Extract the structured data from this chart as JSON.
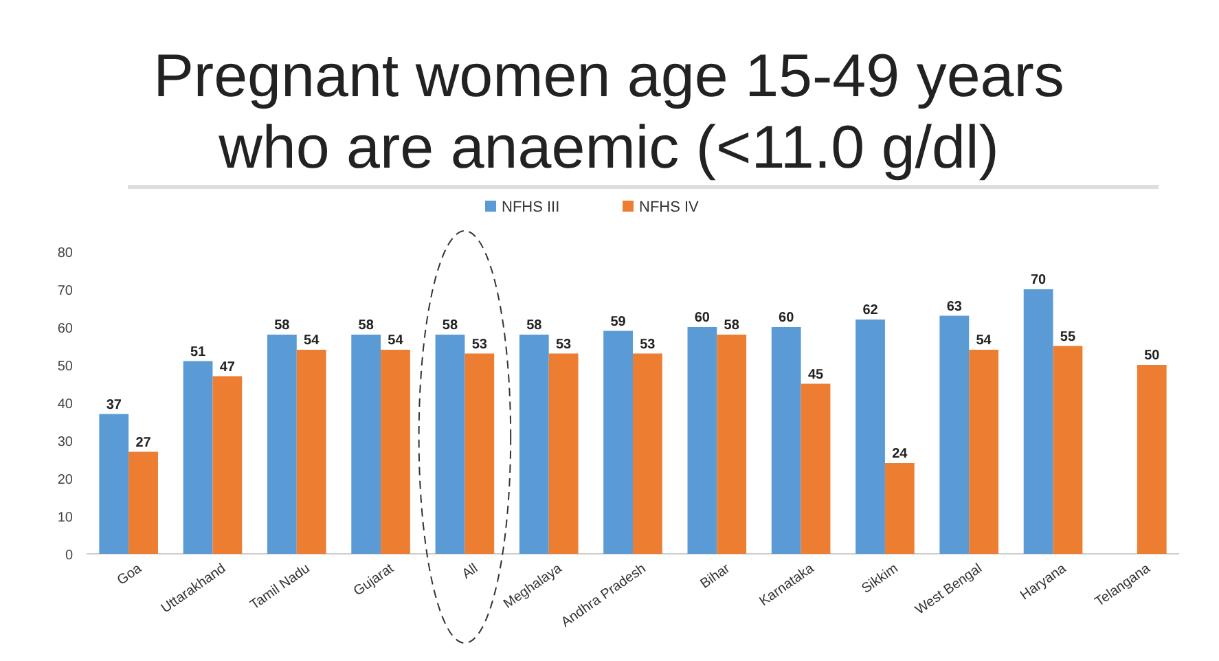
{
  "chart_data": {
    "type": "bar",
    "title": "Pregnant women age 15-49 years who are anaemic (<11.0 g/dl)",
    "categories": [
      "Goa",
      "Uttarakhand",
      "Tamil Nadu",
      "Gujarat",
      "All",
      "Meghalaya",
      "Andhra Pradesh",
      "Bihar",
      "Karnataka",
      "Sikkim",
      "West Bengal",
      "Haryana",
      "Telangana"
    ],
    "series": [
      {
        "name": "NFHS III",
        "color": "#5b9bd5",
        "values": [
          37,
          51,
          58,
          58,
          58,
          58,
          59,
          60,
          60,
          62,
          63,
          70,
          null
        ]
      },
      {
        "name": "NFHS IV",
        "color": "#ed7d31",
        "values": [
          27,
          47,
          54,
          54,
          53,
          53,
          53,
          58,
          45,
          24,
          54,
          55,
          50
        ]
      }
    ],
    "ylim": [
      0,
      80
    ],
    "yticks": [
      0,
      10,
      20,
      30,
      40,
      50,
      60,
      70,
      80
    ],
    "data_labels": true,
    "legend": "top"
  }
}
